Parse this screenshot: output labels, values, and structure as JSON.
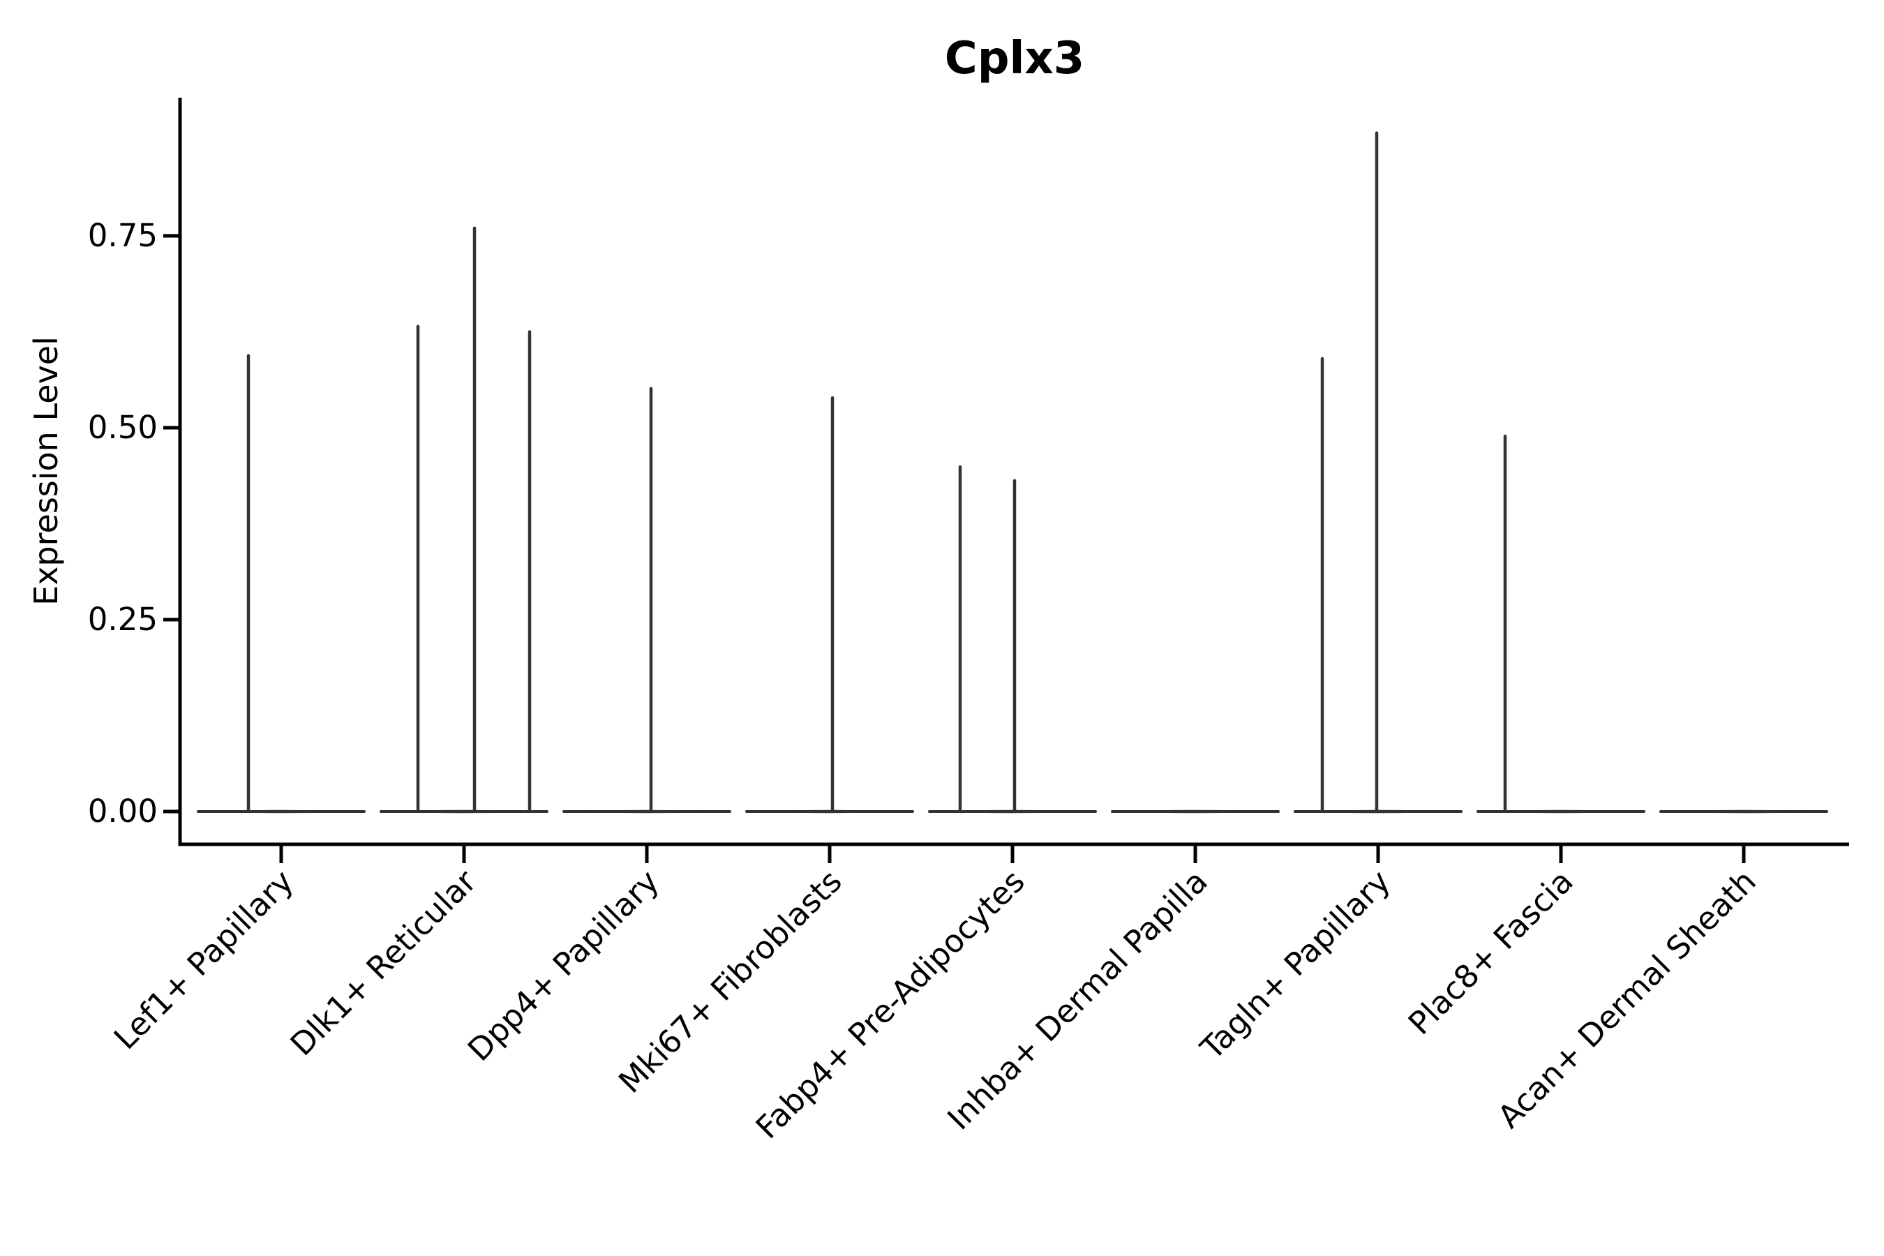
{
  "page": {
    "background": "#ffffff"
  },
  "chart_data": {
    "type": "violin",
    "title": "Cplx3",
    "xlabel": "",
    "ylabel": "Expression Level",
    "ylim": [
      0,
      0.93
    ],
    "yticks": [
      0,
      0.25,
      0.5,
      0.75
    ],
    "ytick_labels": [
      "0.00",
      "0.25",
      "0.50",
      "0.75"
    ],
    "grid": false,
    "legend": "none",
    "axis_color": "#000000",
    "violin_color": "#333333",
    "categories": [
      "Lef1+ Papillary",
      "Dlk1+ Reticular",
      "Dpp4+ Papillary",
      "Mki67+ Fibroblasts",
      "Fabp4+ Pre-Adipocytes",
      "Inhba+ Dermal Papilla",
      "Tagln+ Papillary",
      "Plac8+ Fascia",
      "Acan+ Dermal Sheath"
    ],
    "series": [
      {
        "category": "Lef1+ Papillary",
        "baseline_value": 0,
        "spikes": [
          {
            "dx": -47,
            "max": 0.594
          }
        ]
      },
      {
        "category": "Dlk1+ Reticular",
        "baseline_value": 0,
        "spikes": [
          {
            "dx": -66,
            "max": 0.632
          },
          {
            "dx": 15,
            "max": 0.76
          },
          {
            "dx": 94,
            "max": 0.625
          }
        ]
      },
      {
        "category": "Dpp4+ Papillary",
        "baseline_value": 0,
        "spikes": [
          {
            "dx": 6,
            "max": 0.551
          }
        ]
      },
      {
        "category": "Mki67+ Fibroblasts",
        "baseline_value": 0,
        "spikes": [
          {
            "dx": 4,
            "max": 0.539
          }
        ]
      },
      {
        "category": "Fabp4+ Pre-Adipocytes",
        "baseline_value": 0,
        "spikes": [
          {
            "dx": -75,
            "max": 0.449
          },
          {
            "dx": 3,
            "max": 0.431
          }
        ]
      },
      {
        "category": "Inhba+ Dermal Papilla",
        "baseline_value": 0,
        "spikes": []
      },
      {
        "category": "Tagln+ Papillary",
        "baseline_value": 0,
        "spikes": [
          {
            "dx": -80,
            "max": 0.59
          },
          {
            "dx": -2,
            "max": 0.884
          }
        ]
      },
      {
        "category": "Plac8+ Fascia",
        "baseline_value": 0,
        "spikes": [
          {
            "dx": -80,
            "max": 0.489
          }
        ]
      },
      {
        "category": "Acan+ Dermal Sheath",
        "baseline_value": 0,
        "spikes": []
      }
    ]
  }
}
